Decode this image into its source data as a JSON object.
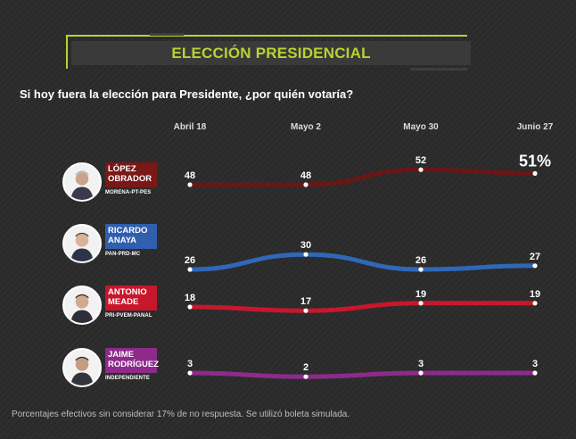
{
  "header": {
    "title": "ELECCIÓN PRESIDENCIAL"
  },
  "question": "Si hoy fuera la elección para Presidente, ¿por quién votaría?",
  "footnote": "Porcentajes efectivos sin considerar 17% de no respuesta. Se utilizó boleta simulada.",
  "candidates": [
    {
      "name_line1": "LÓPEZ",
      "name_line2": "OBRADOR",
      "party": "MORENA-PT-PES",
      "color": "#6b1616",
      "box_color": "#7a1818"
    },
    {
      "name_line1": "RICARDO",
      "name_line2": "ANAYA",
      "party": "PAN-PRD-MC",
      "color": "#2f68b8",
      "box_color": "#2f5fae"
    },
    {
      "name_line1": "ANTONIO",
      "name_line2": "MEADE",
      "party": "PRI-PVEM-PANAL",
      "color": "#c8172c",
      "box_color": "#c8172c"
    },
    {
      "name_line1": "JAIME",
      "name_line2": "RODRÍGUEZ",
      "party": "INDEPENDIENTE",
      "color": "#8e2a8c",
      "box_color": "#8e2a8c"
    }
  ],
  "chart_data": {
    "type": "line",
    "x": [
      "Abril 18",
      "Mayo 2",
      "Mayo 30",
      "Junio 27"
    ],
    "series": [
      {
        "name": "LÓPEZ OBRADOR",
        "values": [
          48,
          48,
          52,
          51
        ],
        "labels": [
          "48",
          "48",
          "52",
          "51%"
        ]
      },
      {
        "name": "RICARDO ANAYA",
        "values": [
          26,
          30,
          26,
          27
        ],
        "labels": [
          "26",
          "30",
          "26",
          "27"
        ]
      },
      {
        "name": "ANTONIO MEADE",
        "values": [
          18,
          17,
          19,
          19
        ],
        "labels": [
          "18",
          "17",
          "19",
          "19"
        ]
      },
      {
        "name": "JAIME RODRÍGUEZ",
        "values": [
          3,
          2,
          3,
          3
        ],
        "labels": [
          "3",
          "2",
          "3",
          "3"
        ]
      }
    ],
    "grid": false,
    "legend": "left"
  }
}
